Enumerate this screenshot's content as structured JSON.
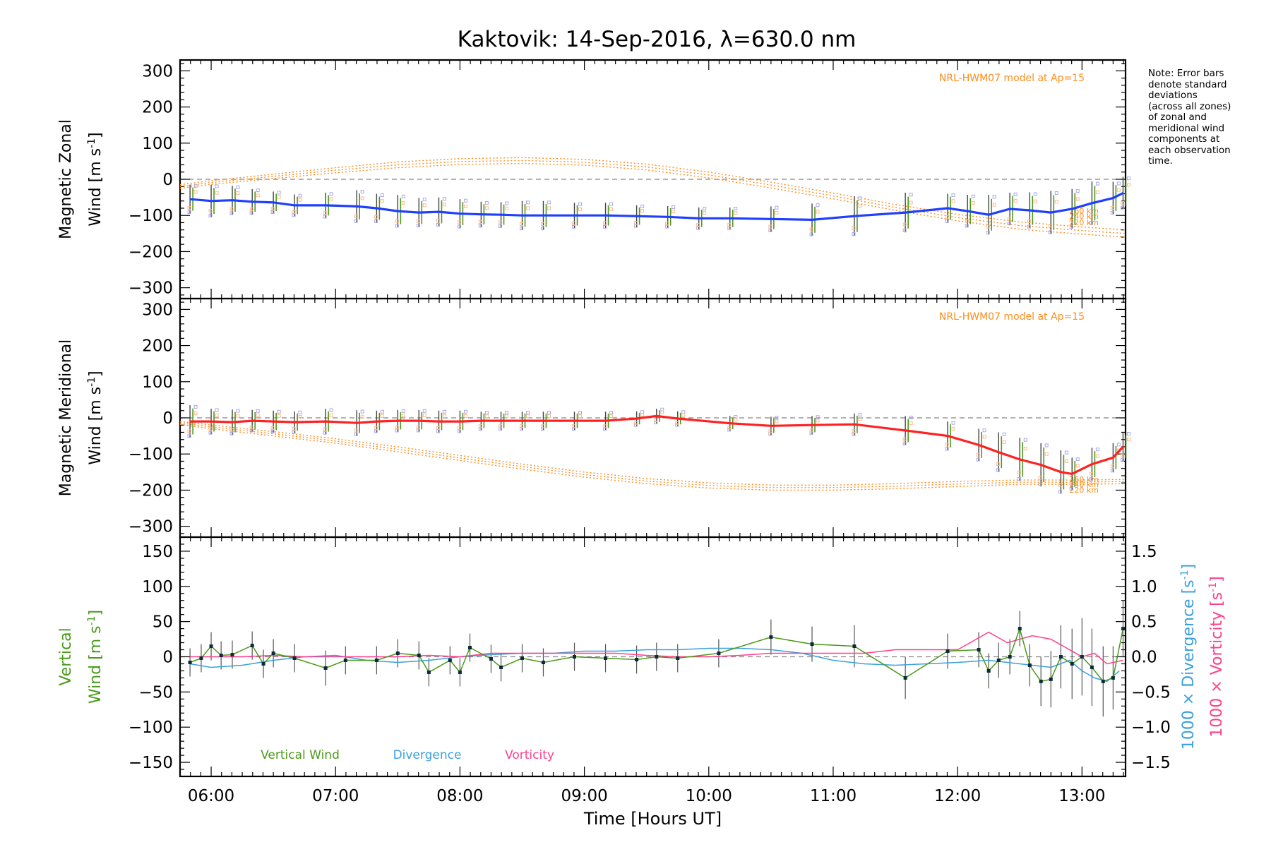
{
  "title": "Kaktovik: 14-Sep-2016, λ=630.0 nm",
  "note_lines": [
    "Note: Error bars",
    "denote standard",
    "deviations",
    "(across all zones)",
    "of zonal and",
    "meridional wind",
    "components at",
    "each observation",
    "time."
  ],
  "colors": {
    "zonal": "#1f3fff",
    "meridional": "#ff2020",
    "model": "#ff8c1a",
    "vertical": "#4a9a1a",
    "divergence": "#3aa0dd",
    "vorticity": "#ff3f8c",
    "errorbar": "#444444",
    "scatter_zonal": "#a9a9e8",
    "scatter_orange": "#ffb98a"
  },
  "chart_data": [
    {
      "type": "line",
      "panel": "zonal",
      "ylabel_line1": "Magnetic Zonal",
      "ylabel_line2": "Wind [m s",
      "ylabel_sup": "-1",
      "ylabel_end": "]",
      "ylim": [
        -330,
        330
      ],
      "yticks": [
        -300,
        -200,
        -100,
        0,
        100,
        200,
        300
      ],
      "ytick_labels": [
        "−300",
        "−200",
        "−100",
        "0",
        "100",
        "200",
        "300"
      ],
      "xlim": [
        5.75,
        13.35
      ],
      "model_label": "NRL-HWM07 model at Ap=15",
      "model_km_labels": [
        "260 km",
        "240 km",
        "220 km"
      ],
      "series": [
        {
          "name": "zonal",
          "x": [
            5.83,
            6.0,
            6.17,
            6.33,
            6.5,
            6.67,
            6.92,
            7.17,
            7.33,
            7.5,
            7.67,
            7.83,
            8.0,
            8.17,
            8.33,
            8.5,
            8.67,
            8.92,
            9.17,
            9.42,
            9.67,
            9.92,
            10.17,
            10.5,
            10.83,
            11.17,
            11.58,
            11.92,
            12.08,
            12.25,
            12.42,
            12.58,
            12.75,
            12.92,
            13.08,
            13.25,
            13.33
          ],
          "y": [
            -55,
            -60,
            -58,
            -62,
            -64,
            -72,
            -72,
            -75,
            -80,
            -88,
            -92,
            -90,
            -95,
            -97,
            -98,
            -100,
            -100,
            -100,
            -100,
            -102,
            -104,
            -108,
            -108,
            -110,
            -112,
            -102,
            -92,
            -80,
            -88,
            -98,
            -82,
            -86,
            -92,
            -82,
            -66,
            -52,
            -38
          ],
          "err": [
            40,
            45,
            40,
            35,
            30,
            30,
            35,
            45,
            40,
            45,
            40,
            40,
            40,
            35,
            35,
            40,
            40,
            35,
            35,
            30,
            30,
            30,
            30,
            35,
            45,
            55,
            55,
            40,
            45,
            55,
            45,
            50,
            60,
            55,
            60,
            45,
            45
          ]
        },
        {
          "name": "model 260 km",
          "x": [
            5.75,
            6.0,
            6.5,
            7.0,
            7.5,
            8.0,
            8.5,
            9.0,
            9.5,
            10.0,
            10.5,
            11.0,
            11.5,
            12.0,
            12.5,
            13.0,
            13.35
          ],
          "y": [
            -15,
            -4,
            14,
            32,
            48,
            57,
            60,
            55,
            42,
            20,
            -8,
            -38,
            -70,
            -97,
            -118,
            -132,
            -140
          ]
        },
        {
          "name": "model 240 km",
          "x": [
            5.75,
            6.0,
            6.5,
            7.0,
            7.5,
            8.0,
            8.5,
            9.0,
            9.5,
            10.0,
            10.5,
            11.0,
            11.5,
            12.0,
            12.5,
            13.0,
            13.35
          ],
          "y": [
            -20,
            -9,
            8,
            25,
            40,
            49,
            52,
            47,
            34,
            12,
            -16,
            -46,
            -78,
            -106,
            -128,
            -142,
            -150
          ]
        },
        {
          "name": "model 220 km",
          "x": [
            5.75,
            6.0,
            6.5,
            7.0,
            7.5,
            8.0,
            8.5,
            9.0,
            9.5,
            10.0,
            10.5,
            11.0,
            11.5,
            12.0,
            12.5,
            13.0,
            13.35
          ],
          "y": [
            -25,
            -14,
            2,
            18,
            32,
            41,
            44,
            39,
            26,
            4,
            -24,
            -54,
            -86,
            -115,
            -138,
            -152,
            -160
          ]
        }
      ]
    },
    {
      "type": "line",
      "panel": "meridional",
      "ylabel_line1": "Magnetic Meridional",
      "ylabel_line2": "Wind [m s",
      "ylabel_sup": "-1",
      "ylabel_end": "]",
      "ylim": [
        -330,
        330
      ],
      "yticks": [
        -300,
        -200,
        -100,
        0,
        100,
        200,
        300
      ],
      "ytick_labels": [
        "−300",
        "−200",
        "−100",
        "0",
        "100",
        "200",
        "300"
      ],
      "xlim": [
        5.75,
        13.35
      ],
      "model_label": "NRL-HWM07 model at Ap=15",
      "model_km_labels": [
        "260 km",
        "240 km",
        "220 km"
      ],
      "series": [
        {
          "name": "meridional",
          "x": [
            5.83,
            6.0,
            6.17,
            6.33,
            6.5,
            6.67,
            6.92,
            7.17,
            7.33,
            7.5,
            7.67,
            7.83,
            8.0,
            8.17,
            8.33,
            8.5,
            8.67,
            8.92,
            9.17,
            9.42,
            9.58,
            9.75,
            10.17,
            10.5,
            10.83,
            11.17,
            11.58,
            11.92,
            12.17,
            12.33,
            12.5,
            12.67,
            12.83,
            12.92,
            13.08,
            13.25,
            13.33
          ],
          "y": [
            -10,
            -10,
            -12,
            -8,
            -10,
            -12,
            -10,
            -14,
            -10,
            -8,
            -8,
            -10,
            -10,
            -8,
            -8,
            -8,
            -8,
            -8,
            -8,
            -2,
            5,
            -2,
            -15,
            -22,
            -20,
            -18,
            -35,
            -50,
            -75,
            -95,
            -115,
            -130,
            -150,
            -155,
            -128,
            -110,
            -80
          ],
          "err": [
            45,
            35,
            35,
            30,
            30,
            30,
            35,
            35,
            30,
            30,
            30,
            30,
            30,
            25,
            25,
            25,
            25,
            25,
            25,
            20,
            20,
            20,
            20,
            25,
            25,
            30,
            40,
            40,
            45,
            55,
            60,
            60,
            60,
            45,
            45,
            40,
            40
          ]
        },
        {
          "name": "model 260 km",
          "x": [
            5.75,
            6.0,
            6.5,
            7.0,
            7.5,
            8.0,
            8.5,
            9.0,
            9.5,
            10.0,
            10.5,
            11.0,
            11.5,
            12.0,
            12.5,
            13.0,
            13.35
          ],
          "y": [
            -10,
            -20,
            -38,
            -58,
            -80,
            -104,
            -128,
            -150,
            -168,
            -180,
            -186,
            -186,
            -182,
            -176,
            -172,
            -172,
            -170
          ]
        },
        {
          "name": "model 240 km",
          "x": [
            5.75,
            6.0,
            6.5,
            7.0,
            7.5,
            8.0,
            8.5,
            9.0,
            9.5,
            10.0,
            10.5,
            11.0,
            11.5,
            12.0,
            12.5,
            13.0,
            13.35
          ],
          "y": [
            -14,
            -25,
            -44,
            -64,
            -87,
            -111,
            -135,
            -157,
            -175,
            -187,
            -193,
            -193,
            -189,
            -183,
            -178,
            -178,
            -176
          ]
        },
        {
          "name": "model 220 km",
          "x": [
            5.75,
            6.0,
            6.5,
            7.0,
            7.5,
            8.0,
            8.5,
            9.0,
            9.5,
            10.0,
            10.5,
            11.0,
            11.5,
            12.0,
            12.5,
            13.0,
            13.35
          ],
          "y": [
            -18,
            -30,
            -50,
            -70,
            -94,
            -118,
            -142,
            -164,
            -182,
            -194,
            -200,
            -200,
            -196,
            -190,
            -184,
            -184,
            -182
          ]
        }
      ]
    },
    {
      "type": "line",
      "panel": "vertical",
      "ylabel_line1": "Vertical",
      "ylabel_line2": "Wind [m s",
      "ylabel_sup": "-1",
      "ylabel_end": "]",
      "ylim": [
        -170,
        170
      ],
      "yticks": [
        -150,
        -100,
        -50,
        0,
        50,
        100,
        150
      ],
      "ytick_labels": [
        "−150",
        "−100",
        "−50",
        "0",
        "50",
        "100",
        "150"
      ],
      "y2lim": [
        -1.7,
        1.7
      ],
      "y2ticks": [
        -1.5,
        -1.0,
        -0.5,
        0.0,
        0.5,
        1.0,
        1.5
      ],
      "y2tick_labels": [
        "−1.5",
        "−1.0",
        "−0.5",
        "0.0",
        "0.5",
        "1.0",
        "1.5"
      ],
      "y2label_div": "1000 × Divergence [s",
      "y2label_vor": "1000 × Vorticity [s",
      "y2label_sup": "-1",
      "y2label_end": "]",
      "xlim": [
        5.75,
        13.35
      ],
      "xticks": [
        6,
        7,
        8,
        9,
        10,
        11,
        12,
        13
      ],
      "xtick_labels": [
        "06:00",
        "07:00",
        "08:00",
        "09:00",
        "10:00",
        "11:00",
        "12:00",
        "13:00"
      ],
      "xlabel": "Time [Hours UT]",
      "legend": [
        "Vertical Wind",
        "Divergence",
        "Vorticity"
      ],
      "series": [
        {
          "name": "Vertical Wind",
          "x": [
            5.83,
            5.92,
            6.0,
            6.08,
            6.17,
            6.33,
            6.42,
            6.5,
            6.67,
            6.92,
            7.08,
            7.33,
            7.5,
            7.67,
            7.75,
            7.92,
            8.0,
            8.08,
            8.25,
            8.33,
            8.5,
            8.67,
            8.92,
            9.17,
            9.42,
            9.58,
            9.75,
            10.08,
            10.5,
            10.83,
            11.17,
            11.58,
            11.92,
            12.17,
            12.25,
            12.33,
            12.42,
            12.5,
            12.58,
            12.67,
            12.75,
            12.83,
            12.92,
            13.0,
            13.08,
            13.17,
            13.25,
            13.33
          ],
          "y": [
            -8,
            -2,
            15,
            2,
            3,
            16,
            -10,
            5,
            -2,
            -16,
            -5,
            -5,
            5,
            2,
            -22,
            -5,
            -22,
            13,
            -3,
            -15,
            -2,
            -8,
            0,
            -2,
            -4,
            0,
            -2,
            5,
            28,
            18,
            15,
            -30,
            8,
            10,
            -20,
            -5,
            0,
            40,
            -12,
            -35,
            -32,
            0,
            -10,
            0,
            -15,
            -35,
            -30,
            40
          ],
          "err": [
            20,
            20,
            20,
            20,
            20,
            20,
            20,
            20,
            20,
            25,
            20,
            20,
            20,
            20,
            20,
            20,
            20,
            20,
            20,
            20,
            20,
            20,
            20,
            20,
            20,
            20,
            20,
            20,
            25,
            25,
            30,
            30,
            25,
            25,
            25,
            25,
            25,
            25,
            30,
            35,
            40,
            45,
            50,
            55,
            55,
            50,
            45,
            40
          ]
        },
        {
          "name": "Divergence",
          "x": [
            5.83,
            6.0,
            6.25,
            6.5,
            6.75,
            7.0,
            7.25,
            7.5,
            7.75,
            8.0,
            8.25,
            8.5,
            8.75,
            9.0,
            9.25,
            9.5,
            9.75,
            10.0,
            10.25,
            10.5,
            10.75,
            11.0,
            11.25,
            11.5,
            11.75,
            12.0,
            12.25,
            12.5,
            12.75,
            12.9,
            13.0,
            13.1,
            13.2,
            13.3
          ],
          "y": [
            -0.1,
            -0.15,
            -0.12,
            -0.05,
            0.0,
            0.02,
            -0.05,
            -0.08,
            -0.05,
            0.0,
            0.03,
            0.05,
            0.05,
            0.08,
            0.08,
            0.1,
            0.1,
            0.12,
            0.12,
            0.1,
            0.05,
            -0.05,
            -0.1,
            -0.12,
            -0.1,
            -0.08,
            -0.05,
            -0.1,
            -0.15,
            -0.05,
            -0.2,
            -0.3,
            -0.35,
            -0.2
          ]
        },
        {
          "name": "Vorticity",
          "x": [
            5.83,
            6.0,
            6.25,
            6.5,
            6.75,
            7.0,
            7.25,
            7.5,
            7.75,
            8.0,
            8.25,
            8.5,
            8.75,
            9.0,
            9.25,
            9.5,
            9.75,
            10.0,
            10.25,
            10.5,
            10.75,
            11.0,
            11.25,
            11.5,
            11.75,
            12.0,
            12.1,
            12.25,
            12.4,
            12.5,
            12.6,
            12.75,
            12.9,
            13.0,
            13.1,
            13.2,
            13.33
          ],
          "y": [
            0.0,
            0.0,
            0.0,
            0.02,
            0.0,
            0.0,
            0.0,
            0.0,
            0.02,
            0.0,
            0.05,
            0.05,
            0.05,
            0.05,
            0.05,
            0.02,
            0.0,
            0.0,
            0.02,
            0.05,
            0.05,
            0.05,
            0.05,
            0.1,
            0.1,
            0.1,
            0.2,
            0.35,
            0.2,
            0.25,
            0.3,
            0.25,
            0.1,
            0.0,
            0.05,
            -0.1,
            -0.05
          ]
        }
      ]
    }
  ]
}
